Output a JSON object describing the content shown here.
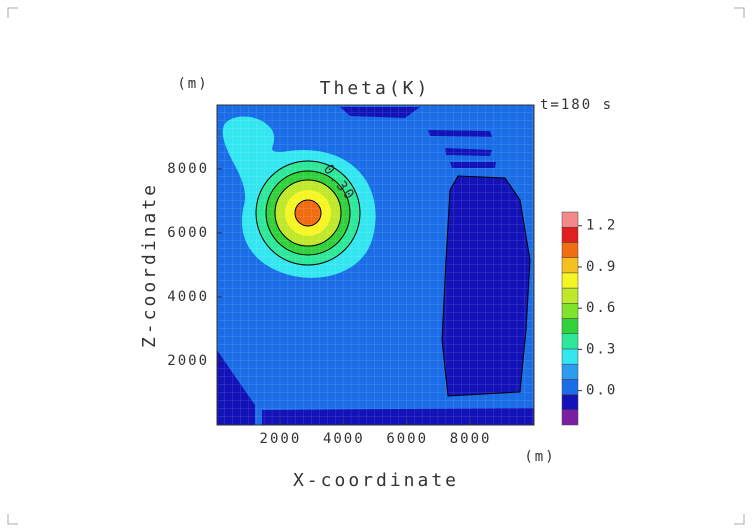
{
  "chart_data": {
    "type": "contour",
    "title": "Theta(K)",
    "subtitle": "t=180 s",
    "x_label": "X-coordinate",
    "y_label": "Z-coordinate",
    "x_unit": "(m)",
    "y_unit": "(m)",
    "xlim": [
      0,
      10000
    ],
    "ylim": [
      0,
      10000
    ],
    "xticks": [
      2000,
      4000,
      6000,
      8000
    ],
    "yticks": [
      2000,
      4000,
      6000,
      8000
    ],
    "contour_label": "0.30",
    "colorbar": {
      "clim": [
        -0.25,
        1.3
      ],
      "ticks": [
        0.0,
        0.3,
        0.6,
        0.9,
        1.2
      ],
      "colors": [
        "#7b1fa2",
        "#1212b8",
        "#1a6de6",
        "#2b9cf0",
        "#33e6f0",
        "#2ee89a",
        "#31d13c",
        "#7ee32a",
        "#bfe82a",
        "#f5f524",
        "#f5c022",
        "#f26c12",
        "#e02020",
        "#f28a8a"
      ]
    }
  }
}
